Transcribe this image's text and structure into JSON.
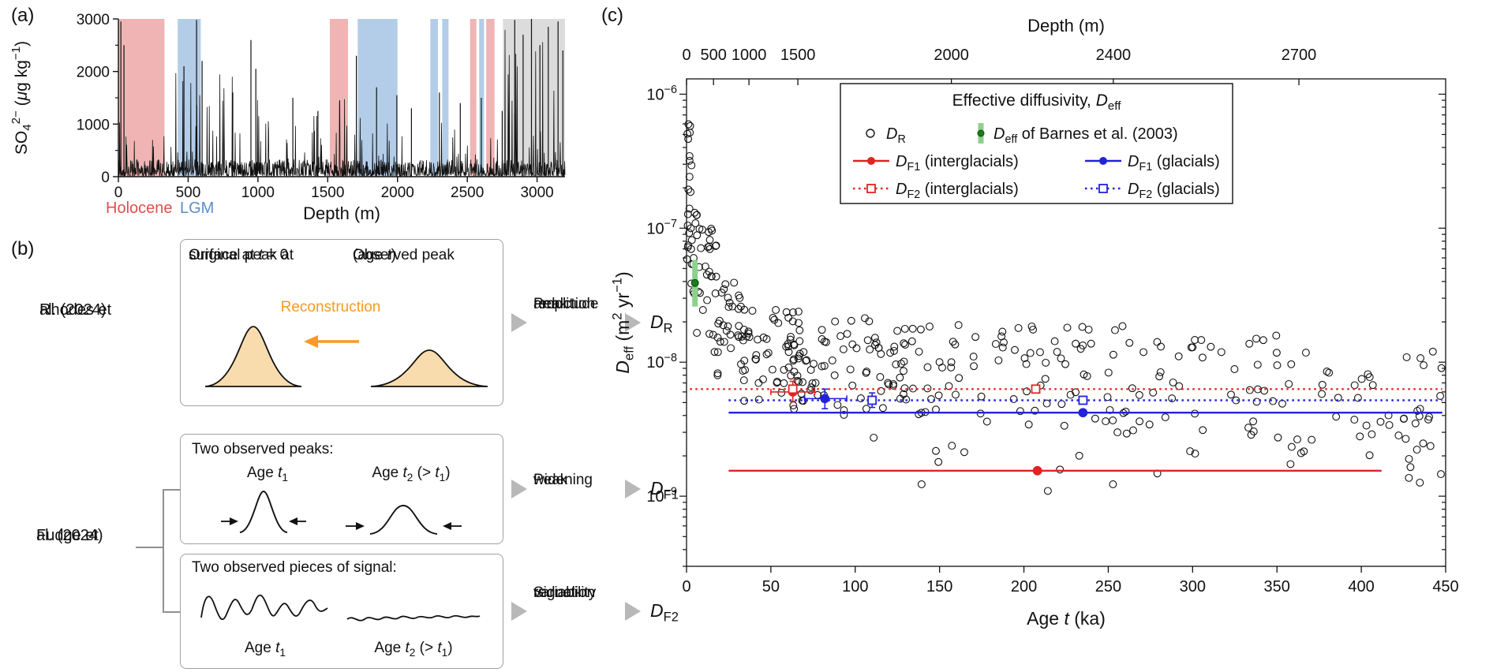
{
  "panels": {
    "a": "(a)",
    "b": "(b)",
    "c": "(c)"
  },
  "chart_data": [
    {
      "id": "sulfate_depth_series",
      "type": "line",
      "xlabel": "Depth (m)",
      "ylabel": "SO~4~^2−^ (*μ*g kg^−1^)",
      "x_ticks": [
        0,
        500,
        1000,
        1500,
        2000,
        2500,
        3000
      ],
      "y_ticks": [
        0,
        1000,
        2000,
        3000
      ],
      "y_minor_ticks": [
        500,
        1500,
        2500
      ],
      "x_range": [
        0,
        3200
      ],
      "y_range": [
        0,
        3000
      ],
      "series_color": "#111111",
      "legend": {
        "holocene": {
          "label": "Holocene",
          "color": "#e04f4f"
        },
        "lgm": {
          "label": "LGM",
          "color": "#5b8ec4"
        }
      },
      "bands": {
        "holocene_color": "#f0b4b4",
        "lgm_color": "#b3cde8",
        "deep_color": "#dcdcdc",
        "holocene": [
          [
            0,
            330
          ],
          [
            1515,
            1645
          ],
          [
            2520,
            2565
          ],
          [
            2635,
            2695
          ]
        ],
        "lgm": [
          [
            425,
            590
          ],
          [
            1715,
            2000
          ],
          [
            2235,
            2290
          ],
          [
            2320,
            2365
          ],
          [
            2585,
            2620
          ]
        ],
        "deep": [
          [
            2755,
            3200
          ]
        ]
      },
      "signal": {
        "seed": 12,
        "n": 1400,
        "baseline": [
          10,
          330
        ],
        "spike_prob": 0.12,
        "spike_max": 1000,
        "region_amp": [
          [
            350,
            1150,
            2000
          ],
          [
            1550,
            2100,
            1700
          ],
          [
            2750,
            3200,
            2900
          ]
        ],
        "feature_spikes": [
          [
            18,
            2950
          ],
          [
            40,
            2500
          ],
          [
            470,
            2100
          ],
          [
            560,
            2980
          ],
          [
            600,
            2200
          ],
          [
            820,
            1600
          ],
          [
            950,
            2600
          ],
          [
            985,
            2050
          ],
          [
            1250,
            1500
          ],
          [
            1430,
            1250
          ],
          [
            1705,
            2300
          ],
          [
            1850,
            1700
          ],
          [
            1995,
            1550
          ],
          [
            2100,
            1300
          ],
          [
            2300,
            1600
          ],
          [
            2450,
            1400
          ],
          [
            2600,
            1500
          ],
          [
            2750,
            1250
          ],
          [
            2840,
            2980
          ],
          [
            2900,
            2700
          ],
          [
            2960,
            3000
          ],
          [
            3020,
            2500
          ],
          [
            3080,
            2850
          ],
          [
            3150,
            2950
          ],
          [
            3185,
            2400
          ]
        ]
      }
    },
    {
      "id": "effective_diffusivity",
      "type": "scatter",
      "xlabel": "Age *t* (ka)",
      "ylabel": "*D*~eff~ (m^2^ yr^−1^)",
      "top_axis": {
        "label": "Depth (m)",
        "ticks": [
          {
            "depth": 0,
            "age": 0
          },
          {
            "depth": 500,
            "age": 16
          },
          {
            "depth": 1000,
            "age": 37
          },
          {
            "depth": 1500,
            "age": 66
          },
          {
            "depth": 2000,
            "age": 157
          },
          {
            "depth": 2400,
            "age": 253
          },
          {
            "depth": 2700,
            "age": 363
          }
        ]
      },
      "x_range": [
        0,
        450
      ],
      "x_ticks": [
        0,
        50,
        100,
        150,
        200,
        250,
        300,
        350,
        400,
        450
      ],
      "y_log_range": [
        3e-10,
        1.3e-06
      ],
      "y_decades": [
        -6,
        -7,
        -8,
        -9
      ],
      "colors": {
        "interglacial": "#e32222",
        "glacial": "#2222dd",
        "scatter": "#111111",
        "barnes_bar": "#8fd08f",
        "barnes_dot": "#1d7a1d"
      },
      "legend": {
        "title": "Effective diffusivity, *D*~eff~",
        "items": [
          {
            "label": "*D*~R~",
            "marker": "open-circle"
          },
          {
            "label": "*D*~eff~ of Barnes et al. (2003)",
            "marker": "barnes"
          },
          {
            "label": "*D*~F1~ (interglacials)",
            "marker": "line-circle",
            "color": "interglacial"
          },
          {
            "label": "*D*~F1~ (glacials)",
            "marker": "line-circle",
            "color": "glacial"
          },
          {
            "label": "*D*~F2~ (interglacials)",
            "marker": "dot-line-square",
            "color": "interglacial"
          },
          {
            "label": "*D*~F2~ (glacials)",
            "marker": "dot-line-square",
            "color": "glacial"
          }
        ]
      },
      "fit_lines": [
        {
          "name": "DF2 interglacials",
          "color": "interglacial",
          "style": "dotted",
          "y": 6.3e-09,
          "x": [
            2,
            448
          ]
        },
        {
          "name": "DF2 glacials",
          "color": "glacial",
          "style": "dotted",
          "y": 5.2e-09,
          "x": [
            25,
            448
          ]
        },
        {
          "name": "DF1 glacials",
          "color": "glacial",
          "style": "solid",
          "y": 4.2e-09,
          "x": [
            25,
            448
          ]
        },
        {
          "name": "DF1 interglacials",
          "color": "interglacial",
          "style": "solid",
          "y": 1.55e-09,
          "x": [
            25,
            412
          ]
        }
      ],
      "fit_markers": [
        {
          "shape": "circle",
          "filled": true,
          "color": "interglacial",
          "age": 63,
          "y": 6e-09,
          "yerr": [
            5.1e-09,
            7.2e-09
          ],
          "xerr": [
            50,
            76
          ]
        },
        {
          "shape": "square",
          "filled": false,
          "color": "interglacial",
          "age": 63,
          "y": 6.3e-09
        },
        {
          "shape": "square",
          "filled": false,
          "color": "interglacial",
          "age": 207,
          "y": 6.3e-09
        },
        {
          "shape": "circle",
          "filled": true,
          "color": "interglacial",
          "age": 208,
          "y": 1.55e-09
        },
        {
          "shape": "circle",
          "filled": true,
          "color": "glacial",
          "age": 82,
          "y": 5.35e-09,
          "yerr": [
            4.5e-09,
            6.3e-09
          ],
          "xerr": [
            70,
            95
          ]
        },
        {
          "shape": "square",
          "filled": false,
          "color": "glacial",
          "age": 110,
          "y": 5.2e-09,
          "yerr": [
            4.6e-09,
            5.9e-09
          ]
        },
        {
          "shape": "circle",
          "filled": true,
          "color": "glacial",
          "age": 235,
          "y": 4.2e-09
        },
        {
          "shape": "square",
          "filled": false,
          "color": "glacial",
          "age": 235,
          "y": 5.2e-09
        }
      ],
      "barnes": {
        "age": 5,
        "y": 3.9e-08,
        "yerr": [
          2.6e-08,
          5.8e-08
        ]
      },
      "scatter": {
        "seed": 7,
        "clusters": [
          {
            "age": [
              0.3,
              3
            ],
            "log10": [
              -7.3,
              -6.2
            ],
            "n": 18
          },
          {
            "age": [
              2,
              8
            ],
            "log10": [
              -7.5,
              -6.85
            ],
            "n": 16
          },
          {
            "age": [
              6,
              18
            ],
            "log10": [
              -7.8,
              -7.0
            ],
            "n": 24
          },
          {
            "age": [
              15,
              35
            ],
            "log10": [
              -8.1,
              -7.4
            ],
            "n": 32
          },
          {
            "age": [
              30,
              70
            ],
            "log10": [
              -8.35,
              -7.6
            ],
            "n": 55
          },
          {
            "age": [
              60,
              150
            ],
            "log10": [
              -8.4,
              -7.65
            ],
            "n": 95
          },
          {
            "age": [
              150,
              260
            ],
            "log10": [
              -8.5,
              -7.7
            ],
            "n": 65
          },
          {
            "age": [
              255,
              355
            ],
            "log10": [
              -8.55,
              -7.8
            ],
            "n": 48
          },
          {
            "age": [
              350,
              448
            ],
            "log10": [
              -8.8,
              -7.85
            ],
            "n": 42
          },
          {
            "age": [
              100,
              440
            ],
            "log10": [
              -9.0,
              -8.55
            ],
            "n": 14
          },
          {
            "age": [
              425,
              450
            ],
            "log10": [
              -8.9,
              -8.4
            ],
            "n": 12
          }
        ]
      }
    }
  ],
  "panel_b": {
    "rhodes": [
      "Rhodes et",
      "al. (2024)"
    ],
    "fudge": [
      "Fudge et",
      "al. (2024)"
    ],
    "box1": {
      "caption_left": [
        "Original peak at",
        "surface at *t* = 0"
      ],
      "caption_right": [
        "Observed peak",
        "(age *t*)"
      ],
      "reconstruction": "Reconstruction",
      "arrow_color": "#f59a23",
      "peak_fill": "#f8dcae"
    },
    "box2": {
      "title": "Two observed peaks:",
      "age1": "Age *t*~1~",
      "age2": "Age *t*~2~ (> *t*~1~)"
    },
    "box3": {
      "title": "Two observed pieces of signal:",
      "age1": "Age *t*~1~",
      "age2": "Age *t*~2~ (> *t*~1~)"
    },
    "chains": [
      {
        "text": [
          "Peak",
          "amplitude",
          "reduction"
        ],
        "result": "*D*~R~"
      },
      {
        "text": [
          "Peak",
          "widening"
        ],
        "result": "*D*~F1~"
      },
      {
        "text": [
          "Signal-",
          "variability",
          "reduction"
        ],
        "result": "*D*~F2~"
      }
    ]
  }
}
